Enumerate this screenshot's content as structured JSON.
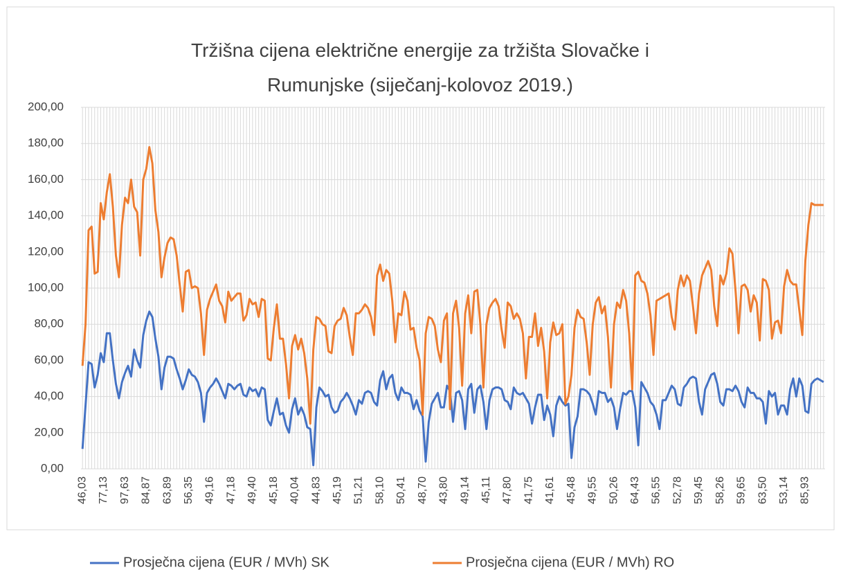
{
  "chart_data": {
    "type": "line",
    "title": "Tržišna cijena električne energije za tržišta Slovačke i Rumunjske (siječanj-kolovoz 2019.)",
    "categories": [
      "46,03",
      null,
      null,
      null,
      null,
      null,
      null,
      "77,13",
      null,
      null,
      null,
      null,
      null,
      null,
      "97,63",
      null,
      null,
      null,
      null,
      null,
      null,
      "84,87",
      null,
      null,
      null,
      null,
      null,
      null,
      "63,89",
      null,
      null,
      null,
      null,
      null,
      null,
      "56,35",
      null,
      null,
      null,
      null,
      null,
      null,
      "49,16",
      null,
      null,
      null,
      null,
      null,
      null,
      "47,18",
      null,
      null,
      null,
      null,
      null,
      null,
      "49,40",
      null,
      null,
      null,
      null,
      null,
      null,
      "45,18",
      null,
      null,
      null,
      null,
      null,
      null,
      "40,04",
      null,
      null,
      null,
      null,
      null,
      null,
      "44,83",
      null,
      null,
      null,
      null,
      null,
      null,
      "45,19",
      null,
      null,
      null,
      null,
      null,
      null,
      "51,21",
      null,
      null,
      null,
      null,
      null,
      null,
      "58,10",
      null,
      null,
      null,
      null,
      null,
      null,
      "50,41",
      null,
      null,
      null,
      null,
      null,
      null,
      "48,70",
      null,
      null,
      null,
      null,
      null,
      null,
      "43,80",
      null,
      null,
      null,
      null,
      null,
      null,
      "49,14",
      null,
      null,
      null,
      null,
      null,
      null,
      "45,11",
      null,
      null,
      null,
      null,
      null,
      null,
      "47,80",
      null,
      null,
      null,
      null,
      null,
      null,
      "41,75",
      null,
      null,
      null,
      null,
      null,
      null,
      "41,61",
      null,
      null,
      null,
      null,
      null,
      null,
      "45,48",
      null,
      null,
      null,
      null,
      null,
      null,
      "49,55",
      null,
      null,
      null,
      null,
      null,
      null,
      "50,26",
      null,
      null,
      null,
      null,
      null,
      null,
      "64,43",
      null,
      null,
      null,
      null,
      null,
      null,
      "56,55",
      null,
      null,
      null,
      null,
      null,
      null,
      "52,78",
      null,
      null,
      null,
      null,
      null,
      null,
      "59,45",
      null,
      null,
      null,
      null,
      null,
      null,
      "58,26",
      null,
      null,
      null,
      null,
      null,
      null,
      "59,65",
      null,
      null,
      null,
      null,
      null,
      null,
      "63,50",
      null,
      null,
      null,
      null,
      null,
      null,
      "53,14",
      null,
      null,
      null,
      null,
      null,
      null,
      "85,93",
      null,
      null,
      null,
      null,
      null,
      null
    ],
    "series": [
      {
        "name": "Prosječna cijena (EUR / MVh) SK",
        "color": "#4472c4",
        "values": [
          11,
          35,
          59,
          58,
          45,
          52,
          64,
          59,
          75,
          75,
          60,
          47,
          39,
          48,
          53,
          57,
          51,
          66,
          60,
          56,
          74,
          82,
          87,
          84,
          72,
          62,
          44,
          56,
          62,
          62,
          61,
          55,
          50,
          44,
          49,
          55,
          52,
          51,
          48,
          42,
          26,
          42,
          45,
          47,
          50,
          47,
          43,
          39,
          47,
          46,
          44,
          46,
          47,
          41,
          40,
          45,
          43,
          44,
          40,
          45,
          44,
          27,
          24,
          32,
          39,
          30,
          31,
          24,
          20,
          33,
          39,
          30,
          34,
          30,
          23,
          22,
          2,
          34,
          45,
          43,
          40,
          41,
          34,
          31,
          32,
          37,
          39,
          42,
          39,
          35,
          30,
          38,
          36,
          42,
          43,
          42,
          37,
          35,
          49,
          54,
          44,
          50,
          52,
          42,
          38,
          45,
          42,
          42,
          41,
          33,
          38,
          32,
          29,
          4,
          26,
          36,
          39,
          42,
          34,
          34,
          46,
          43,
          26,
          42,
          43,
          38,
          22,
          44,
          47,
          31,
          44,
          46,
          37,
          22,
          38,
          44,
          45,
          45,
          44,
          38,
          37,
          33,
          45,
          42,
          41,
          42,
          39,
          36,
          25,
          34,
          41,
          41,
          27,
          35,
          30,
          18,
          35,
          40,
          37,
          35,
          36,
          6,
          23,
          29,
          44,
          44,
          43,
          41,
          36,
          30,
          43,
          42,
          42,
          37,
          39,
          34,
          22,
          33,
          42,
          41,
          43,
          43,
          34,
          13,
          48,
          45,
          42,
          37,
          35,
          30,
          22,
          38,
          38,
          42,
          46,
          44,
          36,
          35,
          45,
          47,
          50,
          51,
          50,
          37,
          30,
          44,
          48,
          52,
          53,
          47,
          37,
          35,
          44,
          44,
          43,
          46,
          43,
          37,
          34,
          45,
          42,
          42,
          39,
          39,
          37,
          25,
          43,
          40,
          42,
          30,
          35,
          35,
          30,
          44,
          50,
          40,
          50,
          46,
          32,
          31,
          47,
          49,
          50,
          49,
          48
        ]
      },
      {
        "name": "Prosječna cijena (EUR / MVh) RO",
        "color": "#ed7d31",
        "values": [
          57,
          80,
          132,
          134,
          108,
          109,
          147,
          138,
          153,
          163,
          145,
          118,
          106,
          135,
          150,
          147,
          160,
          145,
          142,
          118,
          160,
          166,
          178,
          169,
          143,
          131,
          106,
          117,
          125,
          128,
          127,
          118,
          102,
          87,
          109,
          110,
          100,
          101,
          100,
          86,
          63,
          88,
          94,
          98,
          102,
          93,
          90,
          81,
          98,
          93,
          95,
          97,
          97,
          82,
          85,
          94,
          91,
          92,
          84,
          94,
          93,
          61,
          60,
          78,
          91,
          72,
          72,
          58,
          39,
          68,
          74,
          66,
          72,
          64,
          50,
          25,
          66,
          84,
          83,
          80,
          79,
          65,
          64,
          79,
          82,
          83,
          89,
          85,
          73,
          63,
          86,
          86,
          88,
          91,
          89,
          84,
          74,
          107,
          113,
          104,
          110,
          108,
          93,
          70,
          86,
          85,
          98,
          93,
          77,
          78,
          67,
          60,
          30,
          75,
          84,
          83,
          79,
          66,
          59,
          82,
          86,
          33,
          86,
          93,
          78,
          46,
          86,
          96,
          75,
          98,
          99,
          80,
          45,
          80,
          89,
          92,
          94,
          90,
          77,
          67,
          92,
          90,
          83,
          86,
          83,
          75,
          50,
          73,
          73,
          86,
          68,
          78,
          65,
          39,
          70,
          81,
          74,
          75,
          80,
          36,
          40,
          52,
          78,
          88,
          84,
          83,
          70,
          52,
          80,
          92,
          95,
          86,
          90,
          73,
          45,
          80,
          92,
          89,
          99,
          93,
          75,
          44,
          107,
          109,
          104,
          103,
          97,
          85,
          63,
          93,
          94,
          95,
          96,
          97,
          84,
          77,
          99,
          107,
          101,
          107,
          104,
          90,
          75,
          97,
          107,
          111,
          115,
          110,
          90,
          79,
          107,
          102,
          108,
          122,
          119,
          99,
          75,
          101,
          102,
          99,
          87,
          96,
          92,
          71,
          105,
          104,
          99,
          72,
          81,
          82,
          75,
          101,
          110,
          104,
          102,
          102,
          88,
          74,
          115,
          135,
          147,
          146,
          146,
          146,
          146
        ]
      }
    ],
    "ylim": [
      0,
      200
    ],
    "yticks": [
      {
        "value": 0,
        "label": "0,00"
      },
      {
        "value": 20,
        "label": "20,00"
      },
      {
        "value": 40,
        "label": "40,00"
      },
      {
        "value": 60,
        "label": "60,00"
      },
      {
        "value": 80,
        "label": "80,00"
      },
      {
        "value": 100,
        "label": "100,00"
      },
      {
        "value": 120,
        "label": "120,00"
      },
      {
        "value": 140,
        "label": "140,00"
      },
      {
        "value": 160,
        "label": "160,00"
      },
      {
        "value": 180,
        "label": "180,00"
      },
      {
        "value": 200,
        "label": "200,00"
      }
    ],
    "grid": true,
    "legend": "bottom"
  }
}
